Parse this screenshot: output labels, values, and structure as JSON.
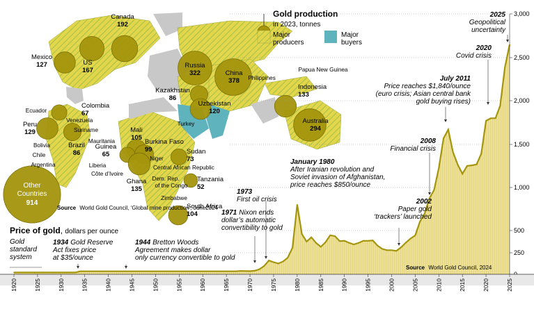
{
  "legend": {
    "title": "Gold production",
    "subtitle": "in 2023, tonnes",
    "producers": "Major producers",
    "buyers": "Major buyers"
  },
  "colors": {
    "gold": "#a4950c",
    "gold_dark": "#7a6d00",
    "yellow": "#e4d64a",
    "blue": "#5fb3bd",
    "land": "#c8c8c8",
    "chart_fill": "#e6d67a"
  },
  "map_source": {
    "label": "Source",
    "text": "World Gold Council, ‘Global mine production’, June2024"
  },
  "producers": [
    {
      "country": "Canada",
      "value": "192"
    },
    {
      "country": "US",
      "value": "167"
    },
    {
      "country": "Mexico",
      "value": "127"
    },
    {
      "country": "Colombia",
      "value": "67"
    },
    {
      "country": "Peru",
      "value": "129"
    },
    {
      "country": "Brazil",
      "value": "86"
    },
    {
      "country": "Russia",
      "value": "322"
    },
    {
      "country": "China",
      "value": "378"
    },
    {
      "country": "Kazakhstan",
      "value": "86"
    },
    {
      "country": "Uzbekistan",
      "value": "120"
    },
    {
      "country": "Indonesia",
      "value": "133"
    },
    {
      "country": "Australia",
      "value": "294"
    },
    {
      "country": "Mali",
      "value": "105"
    },
    {
      "country": "Burkina Faso",
      "value": "99"
    },
    {
      "country": "Guinea",
      "value": "65"
    },
    {
      "country": "Ghana",
      "value": "135"
    },
    {
      "country": "Sudan",
      "value": "73"
    },
    {
      "country": "Tanzania",
      "value": "52"
    },
    {
      "country": "South Africa",
      "value": "104"
    },
    {
      "country": "Other Countries",
      "value": "914"
    }
  ],
  "other_labels": {
    "ecuador": "Ecuador",
    "venezuela": "Venezuela",
    "suriname": "Suriname",
    "bolivia": "Bolivia",
    "chile": "Chile",
    "argentina": "Argentina",
    "mauritania": "Mauritania",
    "liberia": "Liberia",
    "cote": "Côte d’Ivoire",
    "niger": "Niger",
    "car": "Central African Republic",
    "drc1": "Dem. Rep.",
    "drc2": "of the Congo",
    "zimbabwe": "Zimbabwe",
    "turkey": "Turkey",
    "philippines": "Philippines",
    "png": "Papua New Guinea"
  },
  "chart_data": {
    "type": "area",
    "title": "Price of gold",
    "subtitle": "dollars per ounce",
    "x": [
      1920,
      1933,
      1934,
      1944,
      1967,
      1968,
      1970,
      1971,
      1972,
      1973,
      1974,
      1975,
      1976,
      1977,
      1978,
      1979,
      1980,
      1981,
      1982,
      1983,
      1984,
      1985,
      1986,
      1987,
      1988,
      1989,
      1990,
      1991,
      1992,
      1993,
      1994,
      1995,
      1996,
      1997,
      1998,
      1999,
      2000,
      2001,
      2002,
      2003,
      2004,
      2005,
      2006,
      2007,
      2008,
      2009,
      2010,
      2011,
      2012,
      2013,
      2014,
      2015,
      2016,
      2017,
      2018,
      2019,
      2020,
      2021,
      2022,
      2023,
      2024,
      2025
    ],
    "values": [
      20.67,
      20.67,
      35,
      35,
      35,
      39,
      36,
      41,
      58,
      97,
      160,
      140,
      125,
      148,
      193,
      306,
      800,
      460,
      376,
      424,
      360,
      317,
      368,
      447,
      437,
      381,
      384,
      362,
      344,
      360,
      384,
      384,
      388,
      331,
      294,
      279,
      279,
      271,
      310,
      363,
      409,
      445,
      604,
      696,
      872,
      972,
      1225,
      1571,
      1669,
      1411,
      1266,
      1160,
      1251,
      1257,
      1268,
      1393,
      1770,
      1799,
      1800,
      1943,
      2386,
      2650
    ],
    "ylim": [
      0,
      3000
    ],
    "xlim": [
      1920,
      2025
    ],
    "y_ticks": [
      0,
      250,
      500,
      1000,
      1500,
      2000,
      2500,
      3000
    ],
    "y_tick_labels": [
      "0",
      "250",
      "500",
      "1,000",
      "1,500",
      "2,000",
      "2,500",
      "3,000"
    ],
    "x_ticks": [
      1920,
      1925,
      1930,
      1935,
      1940,
      1945,
      1950,
      1955,
      1960,
      1965,
      1970,
      1975,
      1980,
      1985,
      1990,
      1995,
      2000,
      2005,
      2010,
      2015,
      2020,
      2025
    ],
    "annotations": [
      {
        "year": "",
        "text": "Gold standard system"
      },
      {
        "year": "1934",
        "text": "Gold Reserve Act fixes price at $35/ounce"
      },
      {
        "year": "1944",
        "text": "Bretton Woods Agreement makes dollar only currency convertible to gold"
      },
      {
        "year": "1971",
        "text": "Nixon ends dollar’s automatic convertibility to gold"
      },
      {
        "year": "1973",
        "text": "First oil crisis"
      },
      {
        "year": "January 1980",
        "text": "After Iranian revolution and Soviet invasion of Afghanistan, price reaches $850/ounce"
      },
      {
        "year": "2002",
        "text": "Paper gold ‘trackers’ launched"
      },
      {
        "year": "2008",
        "text": "Financial crisis"
      },
      {
        "year": "July 2011",
        "text": "Price reaches $1,840/ounce (euro crisis; Asian central bank gold buying rises)"
      },
      {
        "year": "2020",
        "text": "Covid crisis"
      },
      {
        "year": "2025",
        "text": "Geopolitical uncertainty"
      }
    ],
    "source_label": "Source",
    "source_text": "World Gold Council, 2024"
  }
}
